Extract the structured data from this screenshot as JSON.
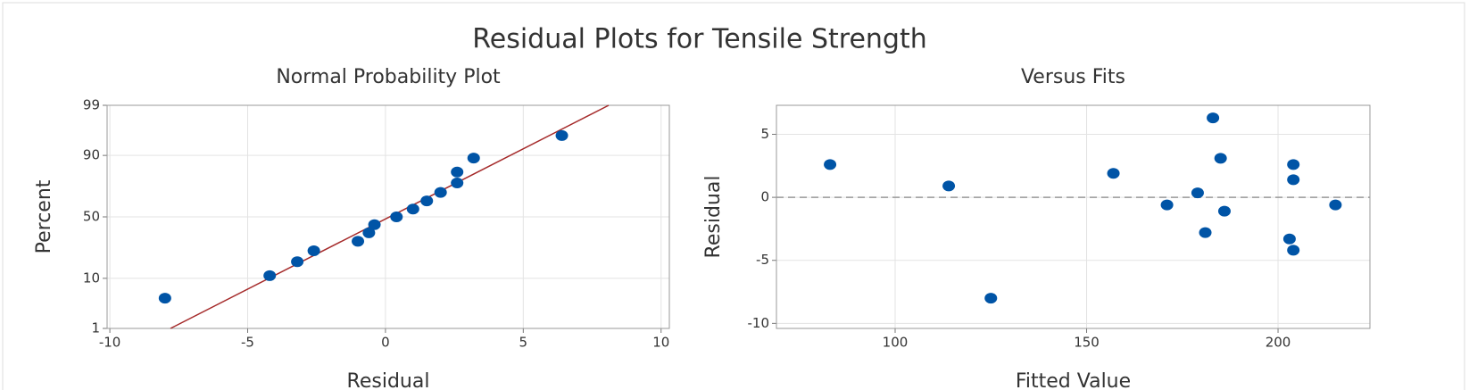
{
  "title": "Residual Plots for Tensile Strength",
  "chart_data": [
    {
      "type": "scatter",
      "subtitle": "Normal Probability Plot",
      "xlabel": "Residual",
      "ylabel": "Percent",
      "x": [
        -8.0,
        -4.2,
        -3.2,
        -2.6,
        -1.0,
        -0.6,
        -0.4,
        0.4,
        1.0,
        1.5,
        2.0,
        2.6,
        2.6,
        3.2,
        6.4
      ],
      "values": [
        4.5,
        11.0,
        17.5,
        24.0,
        30.5,
        37.0,
        43.5,
        50.0,
        56.5,
        63.0,
        69.5,
        76.0,
        82.5,
        89.0,
        95.5
      ],
      "color": "#0054a6",
      "xlim": [
        -10.1,
        10.3
      ],
      "ylim": [
        1,
        99
      ],
      "xticks": [
        -10,
        -5,
        0,
        5,
        10
      ],
      "yticks": [
        1,
        10,
        50,
        90,
        99
      ],
      "yscale": "probability",
      "grid": true,
      "reference_line": {
        "x": [
          -7.8,
          8.1
        ],
        "y": [
          1,
          99
        ],
        "color": "#a52a2a",
        "style": "solid"
      }
    },
    {
      "type": "scatter",
      "subtitle": "Versus Fits",
      "xlabel": "Fitted Value",
      "ylabel": "Residual",
      "x": [
        83,
        114,
        125,
        157,
        171,
        179,
        181,
        183,
        185,
        186,
        204,
        204,
        203,
        204,
        215
      ],
      "values": [
        2.6,
        0.9,
        -8.0,
        1.9,
        -0.6,
        0.35,
        -2.8,
        6.3,
        3.1,
        -1.1,
        2.6,
        1.4,
        -3.3,
        -4.2,
        -0.6
      ],
      "color": "#0054a6",
      "xlim": [
        69,
        224
      ],
      "ylim": [
        -10.4,
        7.3
      ],
      "xticks": [
        100,
        150,
        200
      ],
      "yticks": [
        -10,
        -5,
        0,
        5
      ],
      "yscale": "linear",
      "grid": true,
      "reference_line": {
        "y": 0,
        "color": "#999999",
        "style": "dashed"
      }
    }
  ]
}
